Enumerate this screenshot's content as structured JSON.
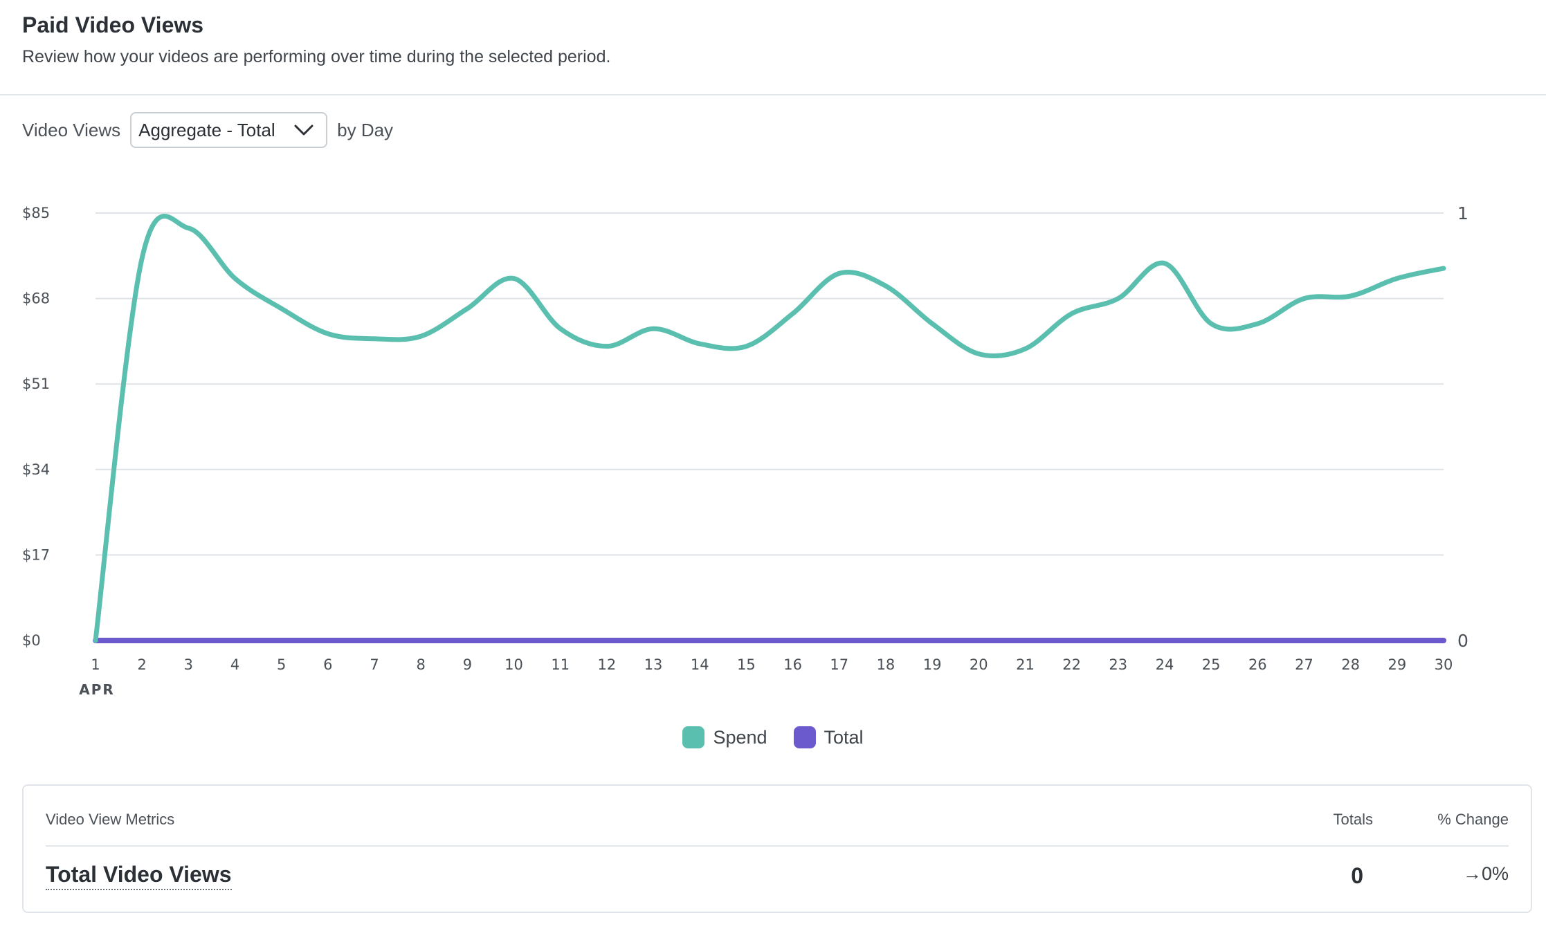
{
  "header": {
    "title": "Paid Video Views",
    "subtitle": "Review how your videos are performing over time during the selected period."
  },
  "controls": {
    "metric_label": "Video Views",
    "aggregate_value": "Aggregate - Total",
    "period_label": "by Day"
  },
  "colors": {
    "spend": "#5bbfb0",
    "total": "#6a5acd",
    "grid": "#dfe2e6"
  },
  "chart_data": {
    "type": "line",
    "x": [
      "1",
      "2",
      "3",
      "4",
      "5",
      "6",
      "7",
      "8",
      "9",
      "10",
      "11",
      "12",
      "13",
      "14",
      "15",
      "16",
      "17",
      "18",
      "19",
      "20",
      "21",
      "22",
      "23",
      "24",
      "25",
      "26",
      "27",
      "28",
      "29",
      "30"
    ],
    "x_month_label": "APR",
    "y_left_ticks": [
      "$0",
      "$17",
      "$34",
      "$51",
      "$68",
      "$85"
    ],
    "y_left_range": [
      0,
      85
    ],
    "y_right_ticks": [
      "0",
      "1"
    ],
    "y_right_range": [
      0,
      1
    ],
    "grid": true,
    "legend_position": "bottom-center",
    "series": [
      {
        "name": "Spend",
        "axis": "left",
        "values": [
          0,
          76,
          82,
          72,
          66,
          61,
          60,
          60.5,
          66,
          72,
          62,
          58.5,
          62,
          59,
          58.5,
          65,
          73,
          70.5,
          63,
          57,
          58,
          65,
          68,
          75,
          63,
          63,
          68,
          68.5,
          72,
          74
        ]
      },
      {
        "name": "Total",
        "axis": "right",
        "values": [
          0,
          0,
          0,
          0,
          0,
          0,
          0,
          0,
          0,
          0,
          0,
          0,
          0,
          0,
          0,
          0,
          0,
          0,
          0,
          0,
          0,
          0,
          0,
          0,
          0,
          0,
          0,
          0,
          0,
          0
        ]
      }
    ]
  },
  "metrics": {
    "column_metric": "Video View Metrics",
    "column_totals": "Totals",
    "column_change": "% Change",
    "rows": [
      {
        "name": "Total Video Views",
        "total": "0",
        "change": "→0%"
      }
    ]
  }
}
